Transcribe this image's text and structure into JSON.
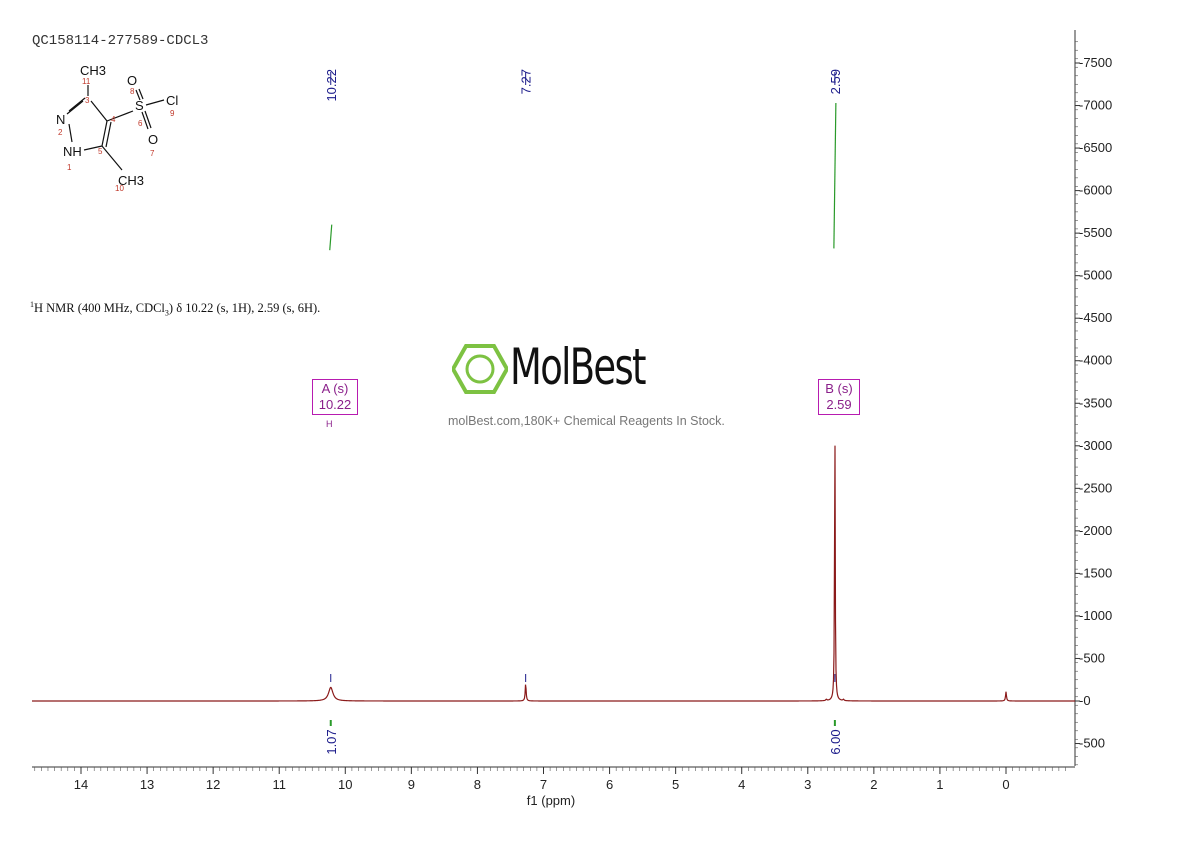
{
  "header": {
    "sample_id": "QC158114-277589-CDCL3",
    "nmr_pre": "H NMR (400 MHz, CDCl",
    "nmr_sup": "1",
    "nmr_sub": "3",
    "nmr_post": ") δ 10.22 (s, 1H), 2.59 (s, 6H)."
  },
  "brand": {
    "name": "MolBest",
    "tagline": "molBest.com,180K+ Chemical Reagents In Stock.",
    "accent_color": "#7dc242"
  },
  "molecule": {
    "labels": {
      "ch3_top": "CH3",
      "ch3_bottom": "CH3",
      "n": "N",
      "nh": "NH",
      "s": "S",
      "cl": "Cl",
      "o_top": "O",
      "o_bottom": "O"
    },
    "atom_numbers": [
      "1",
      "2",
      "3",
      "4",
      "5",
      "6",
      "7",
      "8",
      "9",
      "10",
      "11"
    ]
  },
  "peaks": [
    {
      "id": "A",
      "label": "A (s)",
      "shift": "10.22",
      "sub": "H",
      "integral": "1.07"
    },
    {
      "id": "B",
      "label": "B (s)",
      "shift": "2.59",
      "integral": "6.00"
    }
  ],
  "peak_labels_top": [
    "10.22",
    "7.27",
    "2.59"
  ],
  "chart_data": {
    "type": "line",
    "xlabel": "f1 (ppm)",
    "ylabel": "",
    "xlim": [
      14.8,
      -1.1
    ],
    "ylim": [
      -800,
      7900
    ],
    "x_reversed": true,
    "x_ticks": [
      14,
      13,
      12,
      11,
      10,
      9,
      8,
      7,
      6,
      5,
      4,
      3,
      2,
      1,
      0
    ],
    "y_ticks": [
      -500,
      0,
      500,
      1000,
      1500,
      2000,
      2500,
      3000,
      3500,
      4000,
      4500,
      5000,
      5500,
      6000,
      6500,
      7000,
      7500
    ],
    "series": [
      {
        "peaks": [
          {
            "x": 10.22,
            "height": 160,
            "width": 0.04
          },
          {
            "x": 7.27,
            "height": 210,
            "width": 0.008
          },
          {
            "x": 2.59,
            "height": 3300,
            "width": 0.006
          },
          {
            "x": 2.72,
            "height": 15,
            "width": 0.01
          },
          {
            "x": 2.46,
            "height": 15,
            "width": 0.01
          },
          {
            "x": 0.0,
            "height": 110,
            "width": 0.008
          }
        ],
        "color": "#8b1a1a"
      }
    ],
    "integrals": [
      {
        "x": 10.22,
        "y_start": 5300,
        "y_end": 5600,
        "value": "1.07"
      },
      {
        "x": 2.59,
        "y_start": 5320,
        "y_end": 7030,
        "value": "6.00"
      }
    ],
    "colors": {
      "spectrum": "#8b1a1a",
      "integral": "#2a9a2a",
      "peak_label": "#1a1a8a",
      "peak_box": "#b71bb0"
    }
  }
}
